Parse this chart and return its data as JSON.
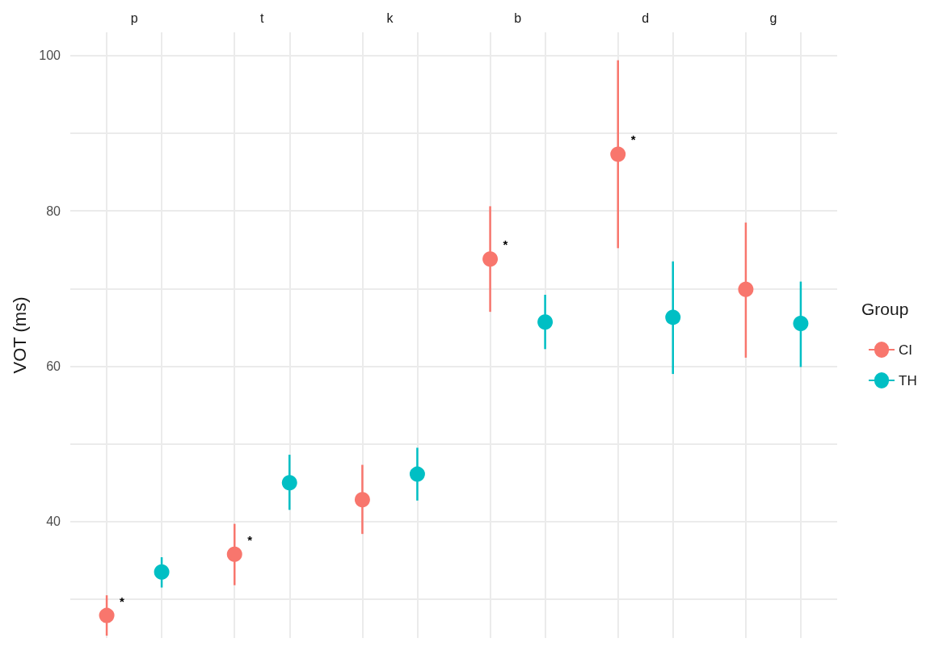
{
  "chart_data": {
    "type": "scatter",
    "ylabel": "VOT (ms)",
    "categories": [
      "p",
      "t",
      "k",
      "b",
      "d",
      "g"
    ],
    "ylim": [
      25,
      103
    ],
    "yticks": [
      {
        "value": 30,
        "label": null
      },
      40,
      {
        "value": 50,
        "label": null
      },
      60,
      {
        "value": 70,
        "label": null
      },
      80,
      {
        "value": 90,
        "label": null
      },
      100
    ],
    "grid": true,
    "marker": "circle",
    "legend": "right",
    "legend_title": "Group",
    "series": [
      {
        "name": "CI",
        "color": "#f8766d",
        "values": [
          27.9,
          35.8,
          42.8,
          73.8,
          87.3,
          69.9
        ],
        "errors": [
          [
            25.3,
            30.5
          ],
          [
            31.8,
            39.7
          ],
          [
            38.4,
            47.3
          ],
          [
            67.0,
            80.6
          ],
          [
            75.2,
            99.4
          ],
          [
            61.1,
            78.5
          ]
        ],
        "value_labels": [
          "*",
          "*",
          null,
          "*",
          "*",
          null
        ]
      },
      {
        "name": "TH",
        "color": "#00bfc4",
        "values": [
          33.5,
          45.0,
          46.1,
          65.7,
          66.3,
          65.5
        ],
        "errors": [
          [
            31.5,
            35.4
          ],
          [
            41.5,
            48.6
          ],
          [
            42.7,
            49.5
          ],
          [
            62.2,
            69.2
          ],
          [
            59.0,
            73.5
          ],
          [
            59.9,
            70.9
          ]
        ]
      }
    ]
  }
}
